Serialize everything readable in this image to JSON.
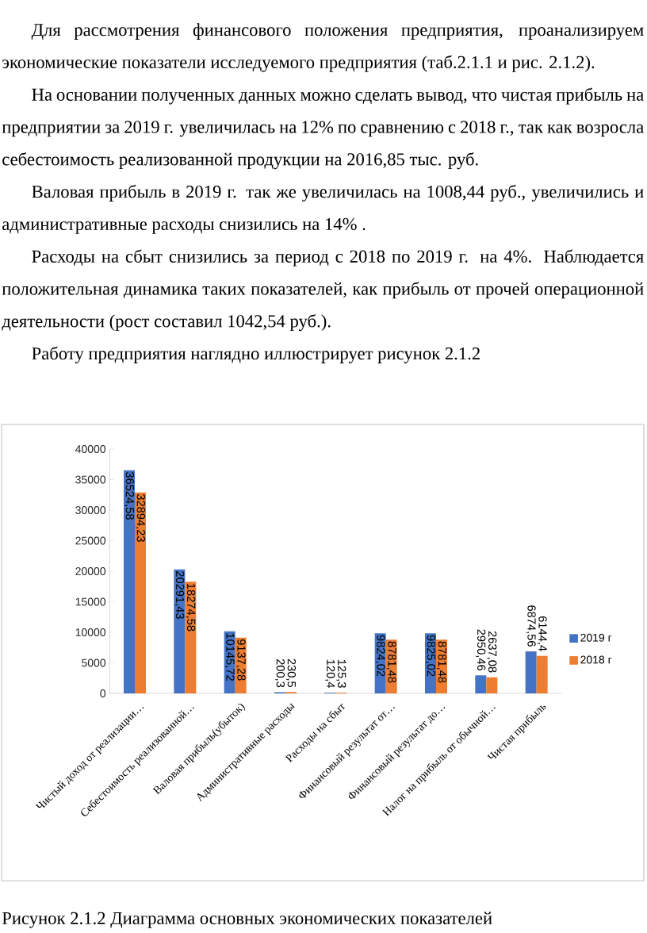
{
  "chart_data": {
    "type": "bar",
    "categories": [
      "Чистый доход от реализации…",
      "Себестоимость реализованной…",
      "Валовая прибыль(убыток)",
      "Административные расходы",
      "Расходы на сбыт",
      "Финансовый результат от…",
      "Финансовый результат до…",
      "Налог на прибыль от обычной…",
      "Чистая прибыль"
    ],
    "series": [
      {
        "name": "2019 г",
        "color": "#4472c4",
        "values": [
          36524.58,
          20291.43,
          10145.72,
          200.3,
          120.4,
          9824.02,
          9825.02,
          2950.46,
          6874.56
        ],
        "value_labels": [
          "36524,58",
          "20291,43",
          "10145,72",
          "200,3",
          "120,4",
          "9824,02",
          "9825,02",
          "2950,46",
          "6874,56"
        ]
      },
      {
        "name": "2018 г",
        "color": "#ed7d31",
        "values": [
          32894.23,
          18274.58,
          9137.28,
          230.5,
          125.3,
          8781.48,
          8781.48,
          2637.08,
          6144.4
        ],
        "value_labels": [
          "32894,23",
          "18274,58",
          "9137,28",
          "230,5",
          "125,3",
          "8781,48",
          "8781,48",
          "2637,08",
          "6144,4"
        ]
      }
    ],
    "ylim": [
      0,
      40000
    ],
    "yticks": [
      0,
      5000,
      10000,
      15000,
      20000,
      25000,
      30000,
      35000,
      40000
    ],
    "legend": "right",
    "annotations": [
      "Для рассмотрения финансового положения предприятия, проанализируем экономические показатели исследуемого предприятия (таб.2.1.1 и рис. 2.1.2).",
      "На основании полученных данных можно сделать вывод, что чистая прибыль на предприятии за 2019 г. увеличилась на 12% по сравнению с 2018 г., так как возросла себестоимость реализованной продукции на 2016,85 тыс. руб.",
      "Валовая прибыль в 2019 г. так же увеличилась на 1008,44 руб., увеличились и административные расходы снизились на 14% .",
      "Расходы на сбыт  снизились за  период с 2018 по 2019 г. на 4%. Наблюдается положительная динамика таких показателей, как прибыль от прочей операционной деятельности (рост составил 1042,54 руб.).",
      "Работу предприятия наглядно иллюстрирует рисунок 2.1.2",
      "Рисунок 2.1.2  Диаграмма основных экономических показателей"
    ]
  }
}
